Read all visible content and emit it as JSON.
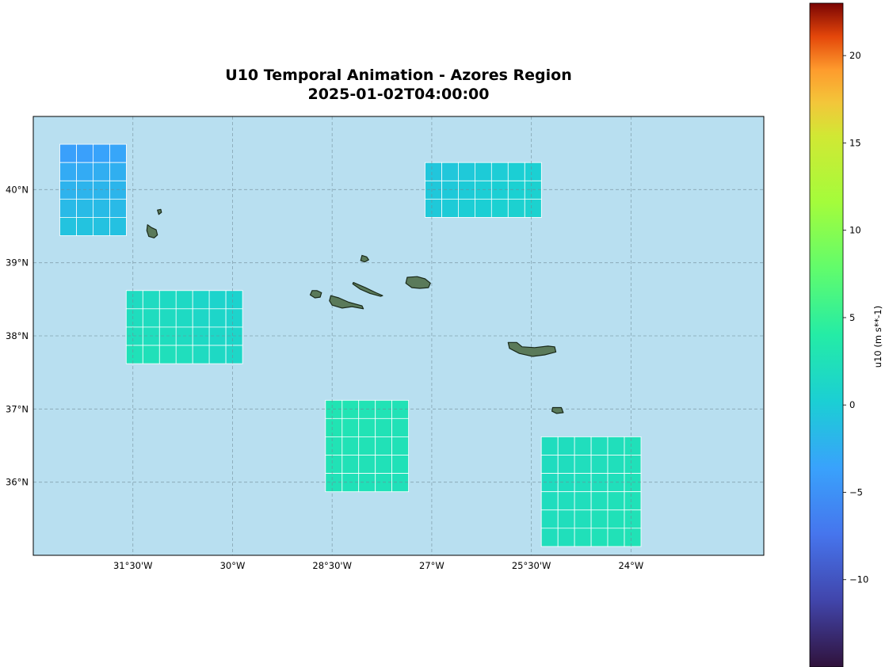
{
  "title": "U10 Temporal Animation - Azores Region",
  "timestamp": "2025-01-02T04:00:00",
  "map": {
    "extent": {
      "lon": [
        -33.0,
        -22.0
      ],
      "lat": [
        35.0,
        41.0
      ]
    },
    "ocean_color": "#b8dff0",
    "land_color": "#5a7a5a",
    "gridlines": true,
    "lon_ticks": [
      {
        "value": -31.5,
        "label": "31°30'W"
      },
      {
        "value": -30.0,
        "label": "30°W"
      },
      {
        "value": -28.5,
        "label": "28°30'W"
      },
      {
        "value": -27.0,
        "label": "27°W"
      },
      {
        "value": -25.5,
        "label": "25°30'W"
      },
      {
        "value": -24.0,
        "label": "24°W"
      }
    ],
    "lat_ticks": [
      {
        "value": 40,
        "label": "40°N"
      },
      {
        "value": 39,
        "label": "39°N"
      },
      {
        "value": 38,
        "label": "38°N"
      },
      {
        "value": 37,
        "label": "37°N"
      },
      {
        "value": 36,
        "label": "36°N"
      }
    ]
  },
  "colorbar": {
    "label": "u10 (m s**-1)",
    "range": [
      -15,
      23
    ],
    "colormap": "turbo",
    "ticks": [
      {
        "value": 20,
        "label": "20"
      },
      {
        "value": 15,
        "label": "15"
      },
      {
        "value": 10,
        "label": "10"
      },
      {
        "value": 5,
        "label": "5"
      },
      {
        "value": 0,
        "label": "0"
      },
      {
        "value": -5,
        "label": "−5"
      },
      {
        "value": -10,
        "label": "−10"
      }
    ]
  },
  "chart_data": {
    "type": "heatmap",
    "variable": "u10",
    "unit": "m s**-1",
    "grids": [
      {
        "name": "nw",
        "lon0": -32.6,
        "lat0": 40.62,
        "step": 0.25,
        "values": [
          [
            -3.8,
            -3.8,
            -3.5,
            -3.3
          ],
          [
            -2.8,
            -2.8,
            -2.6,
            -2.5
          ],
          [
            -2.2,
            -2.1,
            -2.0,
            -2.0
          ],
          [
            -1.6,
            -1.5,
            -1.5,
            -1.6
          ],
          [
            -0.8,
            -0.8,
            -0.9,
            -1.0
          ]
        ]
      },
      {
        "name": "west",
        "lon0": -31.6,
        "lat0": 38.62,
        "step": 0.25,
        "values": [
          [
            1.8,
            1.8,
            1.6,
            1.5,
            1.1,
            0.9,
            0.7
          ],
          [
            2.0,
            1.9,
            1.8,
            1.6,
            1.3,
            1.1,
            0.9
          ],
          [
            2.2,
            2.1,
            2.0,
            1.8,
            1.5,
            1.3,
            1.1
          ],
          [
            2.5,
            2.4,
            2.3,
            2.1,
            1.8,
            1.5,
            1.3
          ]
        ]
      },
      {
        "name": "north",
        "lon0": -27.1,
        "lat0": 40.37,
        "step": 0.25,
        "values": [
          [
            -0.6,
            -0.5,
            -0.3,
            -0.1,
            0.0,
            0.2,
            0.3
          ],
          [
            -0.4,
            -0.3,
            -0.1,
            0.1,
            0.2,
            0.4,
            0.5
          ],
          [
            -0.3,
            -0.1,
            0.1,
            0.2,
            0.4,
            0.5,
            0.6
          ]
        ]
      },
      {
        "name": "south",
        "lon0": -28.6,
        "lat0": 37.12,
        "step": 0.25,
        "values": [
          [
            2.9,
            2.9,
            2.8,
            2.8,
            2.7
          ],
          [
            2.9,
            2.8,
            2.8,
            2.7,
            2.6
          ],
          [
            2.8,
            2.7,
            2.7,
            2.6,
            2.6
          ],
          [
            2.7,
            2.6,
            2.6,
            2.5,
            2.5
          ],
          [
            2.6,
            2.5,
            2.5,
            2.5,
            2.4
          ]
        ]
      },
      {
        "name": "southeast",
        "lon0": -25.35,
        "lat0": 36.62,
        "step": 0.25,
        "values": [
          [
            2.0,
            2.0,
            2.1,
            2.2,
            2.3,
            2.4
          ],
          [
            1.9,
            2.0,
            2.1,
            2.2,
            2.3,
            2.4
          ],
          [
            1.9,
            2.0,
            2.1,
            2.2,
            2.3,
            2.5
          ],
          [
            2.0,
            2.1,
            2.2,
            2.3,
            2.4,
            2.5
          ],
          [
            2.1,
            2.2,
            2.3,
            2.4,
            2.5,
            2.6
          ],
          [
            2.2,
            2.3,
            2.4,
            2.5,
            2.6,
            2.7
          ]
        ]
      }
    ]
  },
  "islands": [
    {
      "name": "Flores",
      "coords": [
        [
          -31.28,
          39.52
        ],
        [
          -31.22,
          39.48
        ],
        [
          -31.15,
          39.45
        ],
        [
          -31.13,
          39.38
        ],
        [
          -31.18,
          39.34
        ],
        [
          -31.26,
          39.36
        ],
        [
          -31.29,
          39.44
        ]
      ]
    },
    {
      "name": "Corvo",
      "coords": [
        [
          -31.13,
          39.72
        ],
        [
          -31.08,
          39.73
        ],
        [
          -31.07,
          39.69
        ],
        [
          -31.11,
          39.66
        ]
      ]
    },
    {
      "name": "Graciosa",
      "coords": [
        [
          -28.05,
          39.1
        ],
        [
          -27.98,
          39.08
        ],
        [
          -27.95,
          39.04
        ],
        [
          -28.01,
          39.01
        ],
        [
          -28.07,
          39.03
        ]
      ]
    },
    {
      "name": "Faial",
      "coords": [
        [
          -28.8,
          38.62
        ],
        [
          -28.73,
          38.62
        ],
        [
          -28.66,
          38.59
        ],
        [
          -28.68,
          38.53
        ],
        [
          -28.76,
          38.52
        ],
        [
          -28.83,
          38.56
        ]
      ]
    },
    {
      "name": "Pico",
      "coords": [
        [
          -28.52,
          38.55
        ],
        [
          -28.4,
          38.52
        ],
        [
          -28.25,
          38.46
        ],
        [
          -28.05,
          38.41
        ],
        [
          -28.03,
          38.37
        ],
        [
          -28.2,
          38.4
        ],
        [
          -28.35,
          38.38
        ],
        [
          -28.5,
          38.42
        ],
        [
          -28.54,
          38.48
        ]
      ]
    },
    {
      "name": "Sao Jorge",
      "coords": [
        [
          -28.18,
          38.73
        ],
        [
          -28.0,
          38.66
        ],
        [
          -27.84,
          38.59
        ],
        [
          -27.74,
          38.55
        ],
        [
          -27.77,
          38.54
        ],
        [
          -27.93,
          38.58
        ],
        [
          -28.08,
          38.64
        ],
        [
          -28.19,
          38.71
        ]
      ]
    },
    {
      "name": "Terceira",
      "coords": [
        [
          -27.37,
          38.8
        ],
        [
          -27.22,
          38.81
        ],
        [
          -27.1,
          38.78
        ],
        [
          -27.02,
          38.72
        ],
        [
          -27.05,
          38.66
        ],
        [
          -27.18,
          38.65
        ],
        [
          -27.3,
          38.66
        ],
        [
          -27.39,
          38.72
        ]
      ]
    },
    {
      "name": "Sao Miguel",
      "coords": [
        [
          -25.85,
          37.91
        ],
        [
          -25.72,
          37.91
        ],
        [
          -25.64,
          37.85
        ],
        [
          -25.45,
          37.84
        ],
        [
          -25.25,
          37.86
        ],
        [
          -25.15,
          37.85
        ],
        [
          -25.13,
          37.78
        ],
        [
          -25.3,
          37.74
        ],
        [
          -25.48,
          37.72
        ],
        [
          -25.68,
          37.76
        ],
        [
          -25.83,
          37.83
        ]
      ]
    },
    {
      "name": "Santa Maria",
      "coords": [
        [
          -25.18,
          37.02
        ],
        [
          -25.05,
          37.02
        ],
        [
          -25.02,
          36.95
        ],
        [
          -25.12,
          36.94
        ],
        [
          -25.19,
          36.97
        ]
      ]
    }
  ]
}
